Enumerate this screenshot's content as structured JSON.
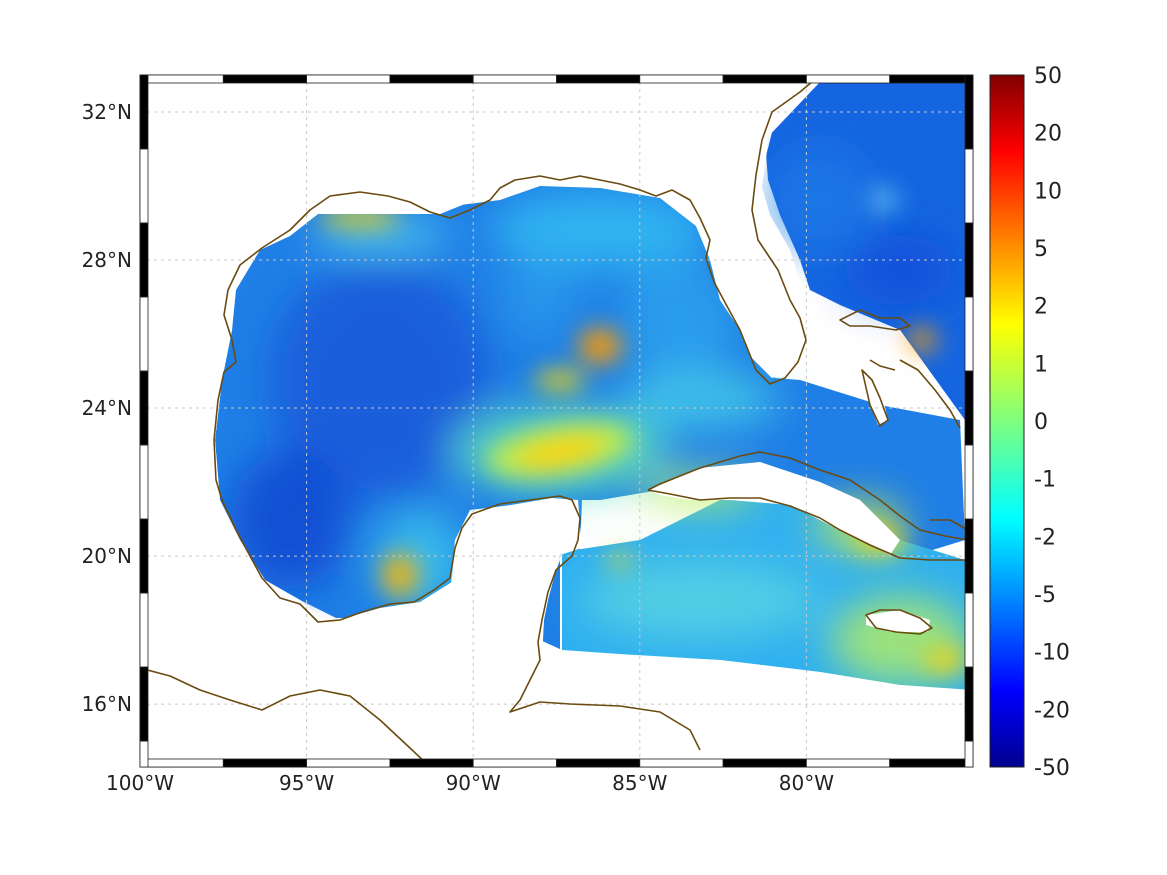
{
  "map": {
    "lon_range": [
      -100,
      -75
    ],
    "lat_range": [
      14.3,
      33
    ],
    "lon_ticks": [
      {
        "value": -100,
        "label": "100°W"
      },
      {
        "value": -95,
        "label": "95°W"
      },
      {
        "value": -90,
        "label": "90°W"
      },
      {
        "value": -85,
        "label": "85°W"
      },
      {
        "value": -80,
        "label": "80°W"
      }
    ],
    "lat_ticks": [
      {
        "value": 32,
        "label": "32°N"
      },
      {
        "value": 28,
        "label": "28°N"
      },
      {
        "value": 24,
        "label": "24°N"
      },
      {
        "value": 20,
        "label": "20°N"
      },
      {
        "value": 16,
        "label": "16°N"
      }
    ],
    "grid": true,
    "coastline_color": "#6b4a10",
    "colormap": "jet"
  },
  "colorbar": {
    "labels": [
      "50",
      "20",
      "10",
      "5",
      "2",
      "1",
      "0",
      "-1",
      "-2",
      "-5",
      "-10",
      "-20",
      "-50"
    ]
  }
}
